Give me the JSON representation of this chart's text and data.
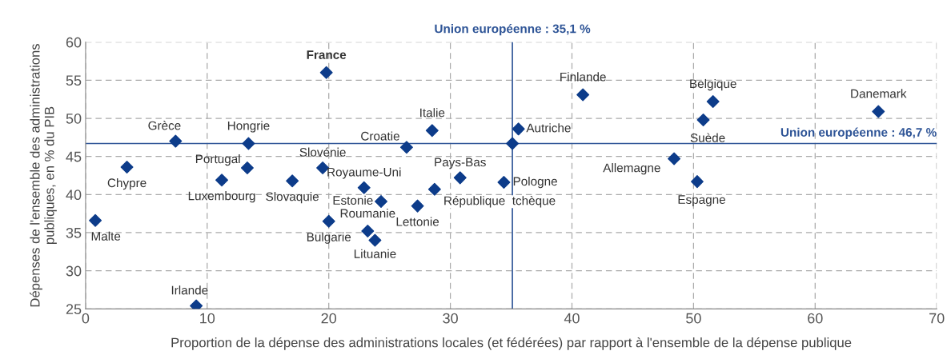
{
  "chart_data": {
    "type": "scatter",
    "xlabel": "Proportion de la dépense des administrations locales (et fédérées) par rapport à l'ensemble de la dépense publique",
    "ylabel": "Dépenses de l'ensemble des administrations\npubliques, en % du PIB",
    "x": [
      0.8,
      3.4,
      7.4,
      9.1,
      11.2,
      13.3,
      13.4,
      17.0,
      19.5,
      19.8,
      20.0,
      22.9,
      24.3,
      23.2,
      23.8,
      26.4,
      28.5,
      27.3,
      28.7,
      30.8,
      34.4,
      35.1,
      35.6,
      40.9,
      51.6,
      50.8,
      48.4,
      50.3,
      65.2
    ],
    "series": [
      {
        "color": "#0d3c8a",
        "values": [
          36.6,
          43.6,
          47.0,
          25.4,
          41.9,
          43.5,
          46.7,
          41.8,
          43.5,
          56.0,
          36.5,
          40.9,
          39.1,
          35.2,
          34.0,
          46.2,
          48.4,
          38.5,
          40.7,
          42.2,
          41.6,
          46.7,
          48.6,
          53.1,
          52.2,
          49.8,
          44.7,
          41.7,
          50.9
        ]
      }
    ],
    "marker": "diamond",
    "grid": true,
    "xlim": [
      0,
      70
    ],
    "xticks": [
      0,
      10,
      20,
      30,
      40,
      50,
      60,
      70
    ],
    "ylim": [
      25,
      60
    ],
    "yticks": [
      25,
      30,
      35,
      40,
      45,
      50,
      55,
      60
    ],
    "ref_lines": [
      {
        "axis": "x",
        "value": 35.1,
        "label": "Union européenne : 35,1 %",
        "color": "#2f5597"
      },
      {
        "axis": "y",
        "value": 46.7,
        "label": "Union européenne : 46,7 %",
        "color": "#2f5597"
      }
    ],
    "annotations": [
      {
        "text": "Malte",
        "x": 0.8,
        "y": 36.6
      },
      {
        "text": "Chypre",
        "x": 3.4,
        "y": 43.6
      },
      {
        "text": "Grèce",
        "x": 7.4,
        "y": 47.0
      },
      {
        "text": "Irlande",
        "x": 9.1,
        "y": 25.4
      },
      {
        "text": "Luxembourg",
        "x": 11.2,
        "y": 41.9
      },
      {
        "text": "Portugal",
        "x": 13.3,
        "y": 43.5
      },
      {
        "text": "Hongrie",
        "x": 13.4,
        "y": 46.7
      },
      {
        "text": "Slovaquie",
        "x": 17.0,
        "y": 41.8
      },
      {
        "text": "Slovénie",
        "x": 19.5,
        "y": 43.5
      },
      {
        "text": "France",
        "x": 19.8,
        "y": 56.0
      },
      {
        "text": "Bulgarie",
        "x": 20.0,
        "y": 36.5
      },
      {
        "text": "Royaume-Uni",
        "x": 22.9,
        "y": 40.9
      },
      {
        "text": "Estonie",
        "x": 24.3,
        "y": 39.1
      },
      {
        "text": "Roumanie",
        "x": 23.2,
        "y": 35.2
      },
      {
        "text": "Lituanie",
        "x": 23.8,
        "y": 34.0
      },
      {
        "text": "Croatie",
        "x": 26.4,
        "y": 46.2
      },
      {
        "text": "Italie",
        "x": 28.5,
        "y": 48.4
      },
      {
        "text": "Lettonie",
        "x": 27.3,
        "y": 38.5
      },
      {
        "text": "République  tchèque",
        "x": 28.7,
        "y": 40.7
      },
      {
        "text": "Pays-Bas",
        "x": 30.8,
        "y": 42.2
      },
      {
        "text": "Pologne",
        "x": 34.4,
        "y": 41.6
      },
      {
        "text": "Autriche",
        "x": 35.6,
        "y": 48.6
      },
      {
        "text": "Finlande",
        "x": 40.9,
        "y": 53.1
      },
      {
        "text": "Belgique",
        "x": 51.6,
        "y": 52.2
      },
      {
        "text": "Suède",
        "x": 50.8,
        "y": 49.8
      },
      {
        "text": "Allemagne",
        "x": 48.4,
        "y": 44.7
      },
      {
        "text": "Espagne",
        "x": 50.3,
        "y": 41.7
      },
      {
        "text": "Danemark",
        "x": 65.2,
        "y": 50.9
      }
    ]
  }
}
